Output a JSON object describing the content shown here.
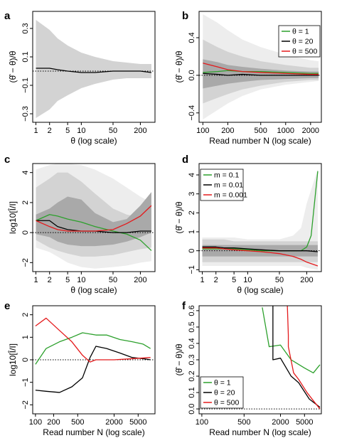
{
  "chart_data": [
    {
      "panel": "a",
      "type": "line",
      "x_scale": "log",
      "xlabel": "θ (log scale)",
      "ylabel": "(θ̂ − θ)/θ",
      "xlim": [
        0.85,
        420
      ],
      "ylim": [
        -0.36,
        0.42
      ],
      "xticks": [
        1,
        2,
        5,
        10,
        50,
        200
      ],
      "xtick_labels": [
        "1",
        "2",
        "5",
        "10",
        "50",
        "200"
      ],
      "yticks": [
        -0.3,
        -0.1,
        0.1,
        0.3
      ],
      "ytick_labels": [
        "−0.3",
        "−0.1",
        "0.1",
        "0.3"
      ],
      "reference_line": 0,
      "bands": [
        {
          "color": "#d3d3d3",
          "x": [
            1,
            2,
            3,
            5,
            10,
            20,
            50,
            100,
            200,
            350
          ],
          "lower": [
            -0.33,
            -0.27,
            -0.21,
            -0.17,
            -0.12,
            -0.09,
            -0.06,
            -0.05,
            -0.05,
            -0.05
          ],
          "upper": [
            0.36,
            0.29,
            0.23,
            0.18,
            0.13,
            0.1,
            0.07,
            0.06,
            0.05,
            0.05
          ]
        }
      ],
      "series": [
        {
          "color": "#000000",
          "x": [
            1,
            2,
            3,
            5,
            10,
            20,
            50,
            100,
            200,
            350
          ],
          "y": [
            0.02,
            0.02,
            0.01,
            0.0,
            -0.01,
            -0.01,
            0.0,
            0.0,
            0.0,
            -0.01
          ]
        }
      ]
    },
    {
      "panel": "b",
      "type": "line",
      "x_scale": "log",
      "xlabel": "Read number N (log scale)",
      "ylabel": "(θ̂ − θ)/θ",
      "xlim": [
        90,
        2700
      ],
      "ylim": [
        -0.5,
        0.68
      ],
      "xticks": [
        100,
        200,
        500,
        1000,
        2000
      ],
      "xtick_labels": [
        "100",
        "200",
        "500",
        "1000",
        "2000"
      ],
      "yticks": [
        -0.4,
        0.0,
        0.4
      ],
      "ytick_labels": [
        "−0.4",
        "0.0",
        "0.4"
      ],
      "reference_line": 0,
      "bands": [
        {
          "color": "#ededed",
          "x": [
            100,
            150,
            200,
            300,
            500,
            1000,
            2000,
            2500
          ],
          "lower": [
            -0.47,
            -0.37,
            -0.3,
            -0.22,
            -0.15,
            -0.1,
            -0.07,
            -0.06
          ],
          "upper": [
            0.65,
            0.56,
            0.48,
            0.38,
            0.3,
            0.22,
            0.16,
            0.15
          ]
        },
        {
          "color": "#d3d3d3",
          "x": [
            100,
            150,
            200,
            300,
            500,
            1000,
            2000,
            2500
          ],
          "lower": [
            -0.3,
            -0.24,
            -0.2,
            -0.15,
            -0.11,
            -0.07,
            -0.05,
            -0.05
          ],
          "upper": [
            0.38,
            0.3,
            0.25,
            0.2,
            0.15,
            0.11,
            0.08,
            0.08
          ]
        },
        {
          "color": "#a9a9a9",
          "x": [
            100,
            150,
            200,
            300,
            500,
            1000,
            2000,
            2500
          ],
          "lower": [
            -0.14,
            -0.11,
            -0.09,
            -0.07,
            -0.05,
            -0.04,
            -0.03,
            -0.03
          ],
          "upper": [
            0.17,
            0.14,
            0.11,
            0.09,
            0.07,
            0.05,
            0.04,
            0.04
          ]
        }
      ],
      "series": [
        {
          "name": "θ = 1",
          "color": "#2ca02c",
          "x": [
            100,
            150,
            200,
            300,
            500,
            1000,
            2000,
            2500
          ],
          "y": [
            0.03,
            0.04,
            0.05,
            0.04,
            0.04,
            0.03,
            0.02,
            0.02
          ]
        },
        {
          "name": "θ = 20",
          "color": "#000000",
          "x": [
            100,
            150,
            200,
            300,
            500,
            1000,
            2000,
            2500
          ],
          "y": [
            0.02,
            0.01,
            0.0,
            0.01,
            0.0,
            0.0,
            0.0,
            0.0
          ]
        },
        {
          "name": "θ = 500",
          "color": "#e41a1c",
          "x": [
            100,
            150,
            200,
            300,
            500,
            1000,
            2000,
            2500
          ],
          "y": [
            0.13,
            0.09,
            0.06,
            0.04,
            0.03,
            0.02,
            0.01,
            0.01
          ]
        }
      ],
      "legend": "top-right"
    },
    {
      "panel": "c",
      "type": "line",
      "x_scale": "log",
      "xlabel": "θ (log scale)",
      "ylabel": "log10[Î/I]",
      "xlim": [
        0.85,
        420
      ],
      "ylim": [
        -2.6,
        4.6
      ],
      "xticks": [
        1,
        2,
        5,
        10,
        50,
        200
      ],
      "xtick_labels": [
        "1",
        "2",
        "5",
        "10",
        "50",
        "200"
      ],
      "yticks": [
        -2,
        0,
        2,
        4
      ],
      "ytick_labels": [
        "−2",
        "0",
        "2",
        "4"
      ],
      "reference_line": 0,
      "bands": [
        {
          "color": "#ededed",
          "x": [
            1,
            2,
            3,
            5,
            10,
            20,
            50,
            100,
            200,
            350
          ],
          "lower": [
            -1.0,
            -1.3,
            -1.6,
            -2.0,
            -2.3,
            -2.4,
            -2.3,
            -2.2,
            -2.0,
            -1.9
          ],
          "upper": [
            4.2,
            4.5,
            4.6,
            4.6,
            4.5,
            4.2,
            3.6,
            3.0,
            2.4,
            2.0
          ]
        },
        {
          "color": "#d3d3d3",
          "x": [
            1,
            2,
            3,
            5,
            10,
            20,
            50,
            100,
            200,
            350
          ],
          "lower": [
            -0.5,
            -1.0,
            -1.2,
            -1.4,
            -1.6,
            -1.6,
            -1.5,
            -1.3,
            -1.1,
            -1.0
          ],
          "upper": [
            3.0,
            3.6,
            4.0,
            4.0,
            3.4,
            2.6,
            1.6,
            1.2,
            1.0,
            0.8
          ]
        },
        {
          "color": "#a9a9a9",
          "x": [
            1,
            2,
            3,
            5,
            10,
            20,
            50,
            100,
            200,
            350
          ],
          "lower": [
            -0.1,
            -0.3,
            -0.6,
            -0.8,
            -0.9,
            -0.9,
            -0.8,
            -0.6,
            -0.3,
            0.0
          ],
          "upper": [
            1.2,
            1.6,
            2.0,
            2.4,
            2.2,
            1.3,
            0.7,
            0.9,
            1.8,
            2.7
          ]
        }
      ],
      "series": [
        {
          "name": "m = 0.1",
          "color": "#2ca02c",
          "x": [
            1,
            2,
            3,
            5,
            10,
            20,
            50,
            100,
            200,
            350
          ],
          "y": [
            0.8,
            1.2,
            1.1,
            0.9,
            0.7,
            0.4,
            0.1,
            -0.1,
            -0.5,
            -1.2
          ]
        },
        {
          "name": "m = 0.01",
          "color": "#000000",
          "x": [
            1,
            2,
            3,
            5,
            10,
            20,
            50,
            100,
            200,
            350
          ],
          "y": [
            0.8,
            0.8,
            0.4,
            0.2,
            0.1,
            0.1,
            0.0,
            0.0,
            0.1,
            0.1
          ]
        },
        {
          "name": "m = 0.001",
          "color": "#e41a1c",
          "x": [
            1,
            2,
            3,
            5,
            10,
            20,
            50,
            100,
            200,
            350
          ],
          "y": [
            0.8,
            0.4,
            0.2,
            0.1,
            0.1,
            0.1,
            0.2,
            0.6,
            1.1,
            1.8
          ]
        }
      ]
    },
    {
      "panel": "d",
      "type": "line",
      "x_scale": "log",
      "xlabel": "θ (log scale)",
      "ylabel": "(θ̂ − θ)/θ",
      "xlim": [
        0.85,
        420
      ],
      "ylim": [
        -1.1,
        4.6
      ],
      "xticks": [
        1,
        2,
        5,
        10,
        50,
        200
      ],
      "xtick_labels": [
        "1",
        "2",
        "5",
        "10",
        "50",
        "200"
      ],
      "yticks": [
        -1,
        0,
        1,
        2,
        3,
        4
      ],
      "ytick_labels": [
        "−1",
        "0",
        "1",
        "2",
        "3",
        "4"
      ],
      "reference_line": 0,
      "bands": [
        {
          "color": "#ededed",
          "x": [
            1,
            2,
            3,
            5,
            10,
            20,
            50,
            100,
            150,
            200,
            350
          ],
          "lower": [
            -0.8,
            -0.8,
            -0.8,
            -0.8,
            -0.8,
            -0.8,
            -0.8,
            -0.8,
            -0.8,
            -0.9,
            -1.0
          ],
          "upper": [
            0.7,
            0.7,
            0.7,
            0.7,
            0.6,
            0.6,
            0.6,
            0.8,
            1.2,
            2.5,
            4.3
          ]
        },
        {
          "color": "#d3d3d3",
          "x": [
            1,
            2,
            3,
            5,
            10,
            20,
            50,
            100,
            150,
            200,
            350
          ],
          "lower": [
            -0.6,
            -0.6,
            -0.6,
            -0.6,
            -0.6,
            -0.6,
            -0.6,
            -0.6,
            -0.6,
            -0.6,
            -0.6
          ],
          "upper": [
            0.6,
            0.6,
            0.6,
            0.5,
            0.5,
            0.5,
            0.5,
            0.5,
            0.5,
            0.5,
            0.5
          ]
        },
        {
          "color": "#a9a9a9",
          "x": [
            1,
            2,
            3,
            5,
            10,
            20,
            50,
            100,
            150,
            200,
            350
          ],
          "lower": [
            -0.3,
            -0.3,
            -0.3,
            -0.3,
            -0.3,
            -0.3,
            -0.3,
            -0.3,
            -0.3,
            -0.3,
            -0.3
          ],
          "upper": [
            0.3,
            0.3,
            0.3,
            0.3,
            0.3,
            0.3,
            0.3,
            0.3,
            0.3,
            0.3,
            0.3
          ]
        }
      ],
      "series": [
        {
          "name": "m = 0.1",
          "color": "#2ca02c",
          "x": [
            1,
            2,
            3,
            5,
            10,
            20,
            50,
            100,
            150,
            200,
            250,
            350
          ],
          "y": [
            0.1,
            0.1,
            0.1,
            0.1,
            0.05,
            0.0,
            0.0,
            0.0,
            0.0,
            0.2,
            0.8,
            4.2
          ]
        },
        {
          "name": "m = 0.01",
          "color": "#000000",
          "x": [
            1,
            2,
            3,
            5,
            10,
            20,
            50,
            100,
            150,
            200,
            350
          ],
          "y": [
            0.2,
            0.2,
            0.15,
            0.15,
            0.1,
            0.05,
            0.0,
            0.0,
            0.0,
            0.0,
            -0.05
          ]
        },
        {
          "name": "m = 0.001",
          "color": "#e41a1c",
          "x": [
            1,
            2,
            3,
            5,
            10,
            20,
            50,
            100,
            150,
            200,
            350
          ],
          "y": [
            0.15,
            0.15,
            0.1,
            0.05,
            0.0,
            -0.05,
            -0.15,
            -0.3,
            -0.45,
            -0.6,
            -0.8
          ]
        }
      ],
      "legend": "top-left"
    },
    {
      "panel": "e",
      "type": "line",
      "x_scale": "log",
      "xlabel": "Read number N (log scale)",
      "ylabel": "log10[Î/I]",
      "xlim": [
        90,
        9500
      ],
      "ylim": [
        -2.4,
        2.4
      ],
      "xticks": [
        100,
        200,
        500,
        2000,
        5000
      ],
      "xtick_labels": [
        "100",
        "200",
        "500",
        "2000",
        "5000"
      ],
      "yticks": [
        -2,
        -1,
        0,
        1,
        2
      ],
      "ytick_labels": [
        "−2",
        "−1",
        "0",
        "1",
        "2"
      ],
      "reference_line": 0,
      "series": [
        {
          "color": "#2ca02c",
          "x": [
            100,
            150,
            250,
            400,
            600,
            1000,
            1500,
            2500,
            4000,
            6000,
            8000
          ],
          "y": [
            -0.2,
            0.5,
            0.8,
            1.0,
            1.2,
            1.1,
            1.1,
            0.9,
            0.8,
            0.7,
            0.5
          ]
        },
        {
          "color": "#000000",
          "x": [
            100,
            150,
            250,
            400,
            600,
            800,
            1000,
            1500,
            2500,
            4000,
            6000,
            8000
          ],
          "y": [
            -1.35,
            -1.4,
            -1.45,
            -1.2,
            -0.8,
            0.1,
            0.6,
            0.5,
            0.3,
            0.1,
            0.05,
            0.0
          ]
        },
        {
          "color": "#e41a1c",
          "x": [
            100,
            150,
            250,
            400,
            600,
            800,
            1000,
            2000,
            4000,
            8000
          ],
          "y": [
            1.5,
            1.85,
            1.3,
            0.8,
            0.2,
            -0.1,
            0.0,
            0.0,
            0.05,
            0.1
          ]
        }
      ]
    },
    {
      "panel": "f",
      "type": "line",
      "x_scale": "log",
      "xlabel": "Read number N (log scale)",
      "ylabel": "(θ̂ − θ)/θ",
      "xlim": [
        90,
        9500
      ],
      "ylim": [
        -0.03,
        0.63
      ],
      "xticks": [
        100,
        500,
        2000,
        5000
      ],
      "xtick_labels": [
        "100",
        "500",
        "2000",
        "5000"
      ],
      "yticks": [
        0.0,
        0.1,
        0.2,
        0.3,
        0.4,
        0.5,
        0.6
      ],
      "ytick_labels": [
        "0.0",
        "0.1",
        "0.2",
        "0.3",
        "0.4",
        "0.5",
        "0.6"
      ],
      "reference_line": 0,
      "series": [
        {
          "name": "θ = 1",
          "color": "#2ca02c",
          "x": [
            1000,
            1300,
            2000,
            3000,
            5000,
            7000,
            9000
          ],
          "y": [
            0.62,
            0.38,
            0.39,
            0.3,
            0.25,
            0.22,
            0.27
          ]
        },
        {
          "name": "θ = 20",
          "color": "#000000",
          "x": [
            1500,
            1500,
            1500,
            2000,
            3000,
            4000,
            6000,
            9000
          ],
          "y": [
            0.63,
            0.3,
            0.3,
            0.31,
            0.2,
            0.16,
            0.06,
            0.01
          ]
        },
        {
          "name": "θ = 500",
          "color": "#e41a1c",
          "x": [
            2600,
            2700,
            2700,
            3300,
            4000,
            5500,
            7000,
            9000
          ],
          "y": [
            0.63,
            0.45,
            0.38,
            0.22,
            0.18,
            0.1,
            0.05,
            0.0
          ]
        }
      ],
      "legend": "bottom-left"
    }
  ]
}
